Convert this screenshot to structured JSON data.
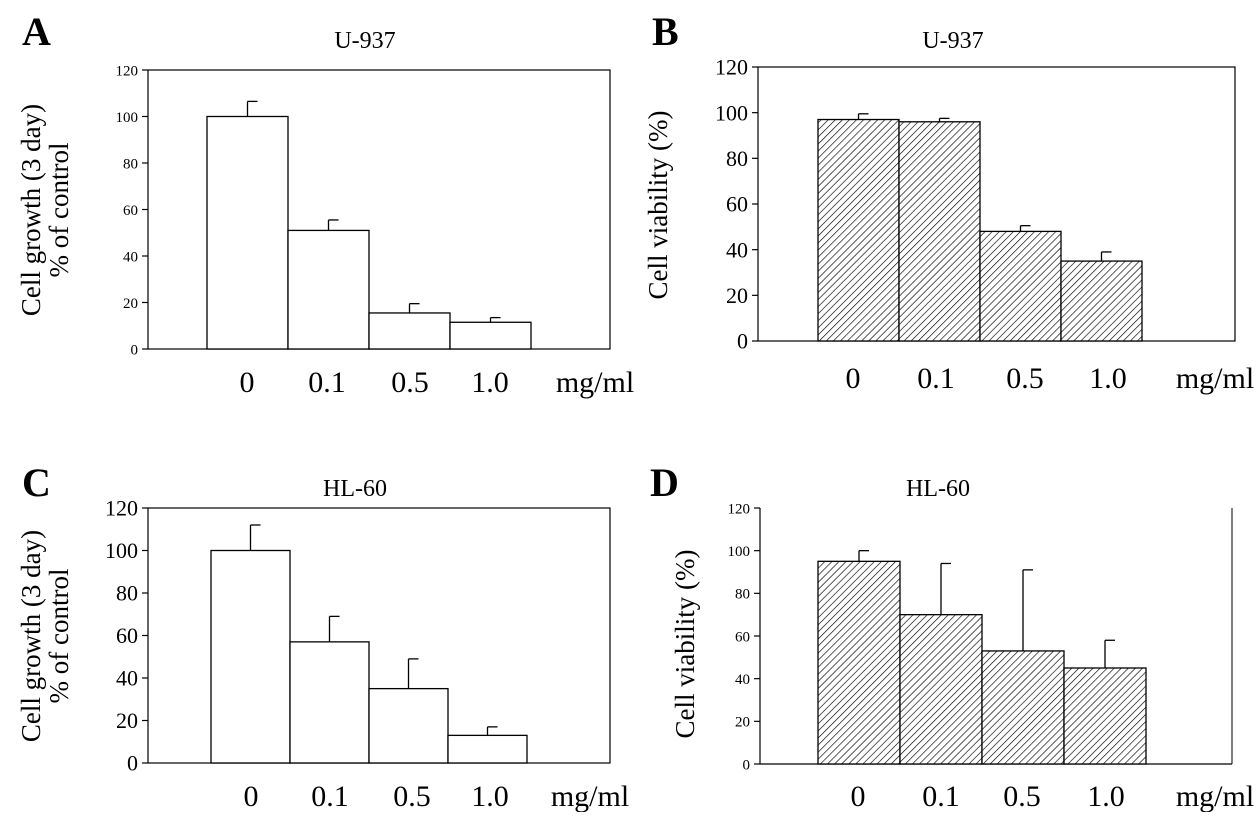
{
  "chart_data": [
    {
      "panel_label": "A",
      "type": "bar",
      "title": "U-937",
      "ylabel_lines": [
        "Cell growth (3 day)",
        "% of control"
      ],
      "categories": [
        "0",
        "0.1",
        "0.5",
        "1.0"
      ],
      "unit_label": "mg/ml",
      "values": [
        100,
        51,
        15.5,
        11.5
      ],
      "errors": [
        6.5,
        4.5,
        4,
        2
      ],
      "yticks": [
        "0",
        "20",
        "40",
        "60",
        "80",
        "100",
        "120"
      ],
      "ylim": [
        0,
        120
      ],
      "fill": "white"
    },
    {
      "panel_label": "B",
      "type": "bar",
      "title": "U-937",
      "ylabel_lines": [
        "Cell viability (%)"
      ],
      "categories": [
        "0",
        "0.1",
        "0.5",
        "1.0"
      ],
      "unit_label": "mg/ml",
      "values": [
        97,
        96,
        48,
        35
      ],
      "errors": [
        2.5,
        1.5,
        2.5,
        4
      ],
      "yticks": [
        "0",
        "20",
        "40",
        "60",
        "80",
        "100",
        "120"
      ],
      "ylim": [
        0,
        120
      ],
      "fill": "hatched"
    },
    {
      "panel_label": "C",
      "type": "bar",
      "title": "HL-60",
      "ylabel_lines": [
        "Cell growth (3 day)",
        "% of control"
      ],
      "categories": [
        "0",
        "0.1",
        "0.5",
        "1.0"
      ],
      "unit_label": "mg/ml",
      "values": [
        100,
        57,
        35,
        13
      ],
      "errors": [
        12,
        12,
        14,
        4
      ],
      "yticks": [
        "0",
        "20",
        "40",
        "60",
        "80",
        "100",
        "120"
      ],
      "ylim": [
        0,
        120
      ],
      "fill": "white"
    },
    {
      "panel_label": "D",
      "type": "bar",
      "title": "HL-60",
      "ylabel_lines": [
        "Cell viability (%)"
      ],
      "categories": [
        "0",
        "0.1",
        "0.5",
        "1.0"
      ],
      "unit_label": "mg/ml",
      "values": [
        95,
        70,
        53,
        45
      ],
      "errors": [
        5,
        24,
        38,
        13
      ],
      "yticks": [
        "0",
        "20",
        "40",
        "60",
        "80",
        "100",
        "120"
      ],
      "ylim": [
        0,
        120
      ],
      "fill": "hatched"
    }
  ]
}
